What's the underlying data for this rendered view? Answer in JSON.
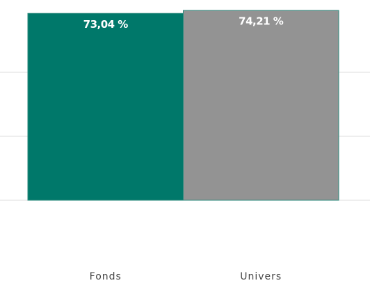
{
  "chart_data": {
    "type": "bar",
    "categories": [
      "Fonds",
      "Univers"
    ],
    "values": [
      73.04,
      74.21
    ],
    "value_labels": [
      "73,04 %",
      "74,21 %"
    ],
    "colors": [
      "#00786a",
      "#939393"
    ],
    "ylim": [
      0,
      78
    ],
    "yticks": [
      0,
      25,
      50
    ],
    "grid": true
  }
}
